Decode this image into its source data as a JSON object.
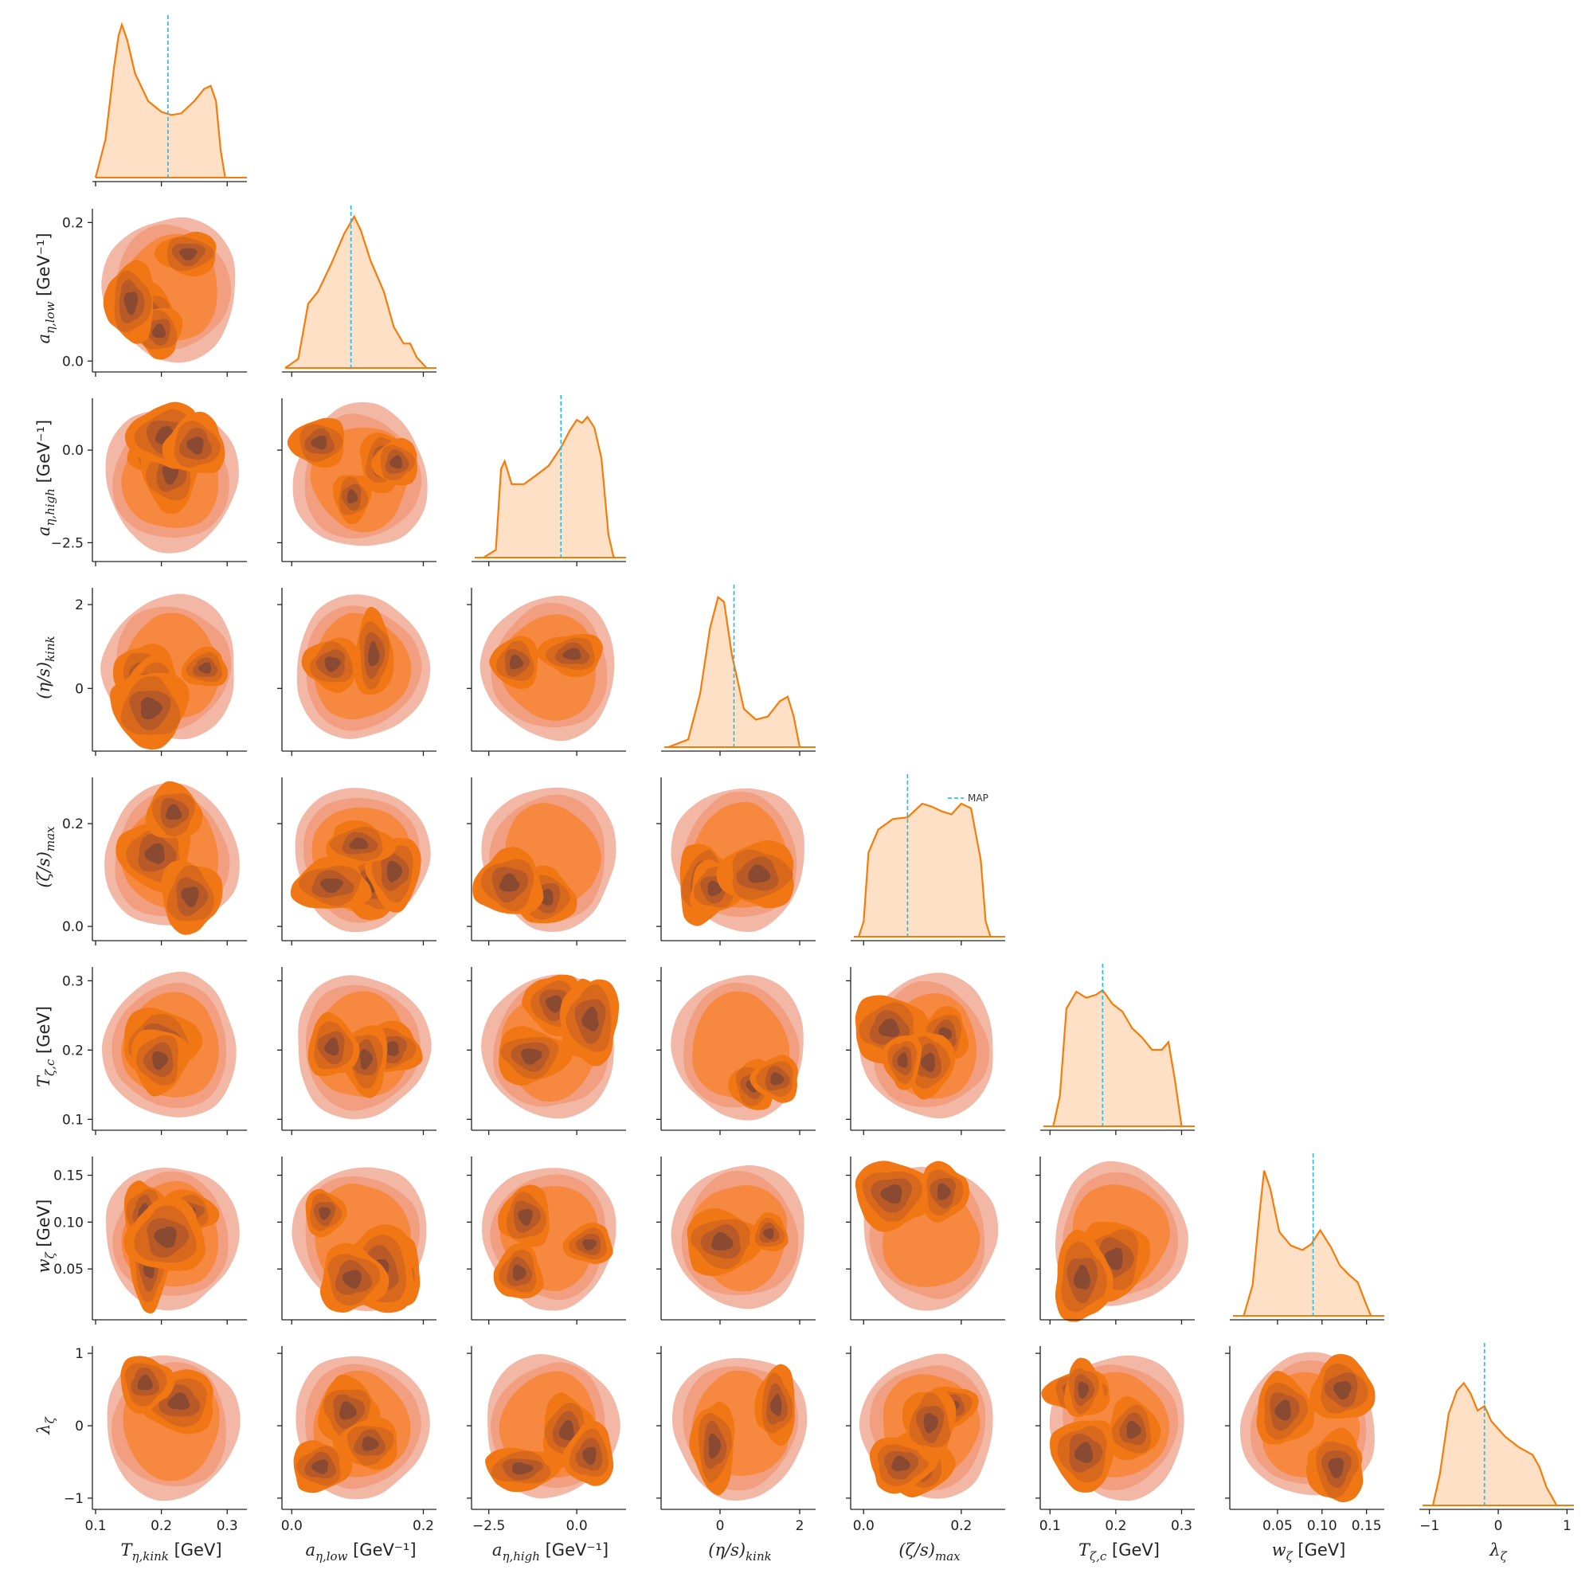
{
  "chart_data": {
    "type": "corner",
    "colors": {
      "kde_line": "#f57c0a",
      "kde_fill": "#fde0c5",
      "map_line": "#29b6e6",
      "contour_levels": [
        "#f2b8a5",
        "#f19f80",
        "#f6883f",
        "#f07713",
        "#d8691c",
        "#b85a28",
        "#8a4a32"
      ]
    },
    "legend": {
      "label": "MAP",
      "placement": "top-right of (ζ/s)max diagonal"
    },
    "parameters": [
      {
        "key": "Teta_kink",
        "label": "T_{η,kink} [GeV]",
        "range": [
          0.1,
          0.33
        ],
        "ticks": [
          "0.1",
          "0.2",
          "0.3"
        ],
        "tick_values": [
          0.1,
          0.2,
          0.3
        ],
        "map": 0.21,
        "kde": [
          [
            0.1,
            0.0
          ],
          [
            0.115,
            0.25
          ],
          [
            0.128,
            0.72
          ],
          [
            0.135,
            0.93
          ],
          [
            0.14,
            1.0
          ],
          [
            0.148,
            0.9
          ],
          [
            0.16,
            0.68
          ],
          [
            0.18,
            0.5
          ],
          [
            0.2,
            0.43
          ],
          [
            0.215,
            0.41
          ],
          [
            0.23,
            0.42
          ],
          [
            0.25,
            0.5
          ],
          [
            0.265,
            0.58
          ],
          [
            0.275,
            0.6
          ],
          [
            0.283,
            0.5
          ],
          [
            0.29,
            0.18
          ],
          [
            0.297,
            0.0
          ]
        ]
      },
      {
        "key": "aeta_low",
        "label": "a_{η,low} [GeV⁻¹]",
        "range": [
          -0.01,
          0.22
        ],
        "ticks": [
          "0.0",
          "0.2"
        ],
        "tick_values": [
          0.0,
          0.2
        ],
        "map": 0.09,
        "kde": [
          [
            -0.01,
            0.0
          ],
          [
            0.01,
            0.06
          ],
          [
            0.025,
            0.42
          ],
          [
            0.04,
            0.5
          ],
          [
            0.06,
            0.68
          ],
          [
            0.08,
            0.88
          ],
          [
            0.095,
            0.99
          ],
          [
            0.105,
            0.9
          ],
          [
            0.12,
            0.7
          ],
          [
            0.14,
            0.5
          ],
          [
            0.155,
            0.27
          ],
          [
            0.17,
            0.16
          ],
          [
            0.18,
            0.16
          ],
          [
            0.19,
            0.07
          ],
          [
            0.205,
            0.0
          ]
        ]
      },
      {
        "key": "aeta_high",
        "label": "a_{η,high} [GeV⁻¹]",
        "range": [
          -2.9,
          1.4
        ],
        "ticks": [
          "−2.5",
          "0.0"
        ],
        "tick_values": [
          -2.5,
          0.0
        ],
        "map": -0.45,
        "kde": [
          [
            -2.65,
            0.0
          ],
          [
            -2.3,
            0.05
          ],
          [
            -2.15,
            0.58
          ],
          [
            -2.05,
            0.63
          ],
          [
            -1.85,
            0.48
          ],
          [
            -1.5,
            0.48
          ],
          [
            -1.2,
            0.53
          ],
          [
            -0.8,
            0.6
          ],
          [
            -0.45,
            0.72
          ],
          [
            -0.2,
            0.83
          ],
          [
            0.0,
            0.9
          ],
          [
            0.15,
            0.88
          ],
          [
            0.3,
            0.92
          ],
          [
            0.5,
            0.85
          ],
          [
            0.7,
            0.65
          ],
          [
            0.9,
            0.15
          ],
          [
            1.05,
            0.0
          ]
        ]
      },
      {
        "key": "etas_kink",
        "label": "(η/s)_kink",
        "range": [
          -1.4,
          2.4
        ],
        "ticks": [
          "0",
          "2"
        ],
        "tick_values": [
          0,
          2
        ],
        "map": 0.35,
        "kde": [
          [
            -1.3,
            0.0
          ],
          [
            -0.8,
            0.05
          ],
          [
            -0.5,
            0.35
          ],
          [
            -0.25,
            0.78
          ],
          [
            -0.05,
            0.98
          ],
          [
            0.1,
            0.95
          ],
          [
            0.3,
            0.6
          ],
          [
            0.6,
            0.25
          ],
          [
            0.9,
            0.18
          ],
          [
            1.2,
            0.2
          ],
          [
            1.5,
            0.3
          ],
          [
            1.7,
            0.33
          ],
          [
            1.85,
            0.2
          ],
          [
            2.0,
            0.0
          ]
        ]
      },
      {
        "key": "zetas_max",
        "label": "(ζ/s)_max",
        "range": [
          -0.02,
          0.29
        ],
        "ticks": [
          "0.0",
          "0.2"
        ],
        "tick_values": [
          0.0,
          0.2
        ],
        "map": 0.09,
        "kde": [
          [
            -0.01,
            0.0
          ],
          [
            0.0,
            0.1
          ],
          [
            0.01,
            0.55
          ],
          [
            0.03,
            0.7
          ],
          [
            0.06,
            0.77
          ],
          [
            0.09,
            0.78
          ],
          [
            0.12,
            0.87
          ],
          [
            0.14,
            0.85
          ],
          [
            0.16,
            0.82
          ],
          [
            0.18,
            0.8
          ],
          [
            0.2,
            0.87
          ],
          [
            0.22,
            0.84
          ],
          [
            0.24,
            0.5
          ],
          [
            0.25,
            0.1
          ],
          [
            0.26,
            0.0
          ]
        ]
      },
      {
        "key": "Tzeta_c",
        "label": "T_{ζ,c} [GeV]",
        "range": [
          0.09,
          0.32
        ],
        "ticks": [
          "0.1",
          "0.2",
          "0.3"
        ],
        "tick_values": [
          0.1,
          0.2,
          0.3
        ],
        "map": 0.18,
        "kde": [
          [
            0.105,
            0.0
          ],
          [
            0.115,
            0.2
          ],
          [
            0.125,
            0.77
          ],
          [
            0.14,
            0.88
          ],
          [
            0.155,
            0.84
          ],
          [
            0.17,
            0.86
          ],
          [
            0.18,
            0.89
          ],
          [
            0.195,
            0.8
          ],
          [
            0.21,
            0.75
          ],
          [
            0.225,
            0.64
          ],
          [
            0.24,
            0.58
          ],
          [
            0.255,
            0.5
          ],
          [
            0.27,
            0.5
          ],
          [
            0.28,
            0.55
          ],
          [
            0.29,
            0.3
          ],
          [
            0.3,
            0.0
          ]
        ]
      },
      {
        "key": "w_zeta",
        "label": "w_ζ [GeV]",
        "range": [
          0.0,
          0.17
        ],
        "ticks": [
          "0.05",
          "0.10",
          "0.15"
        ],
        "tick_values": [
          0.05,
          0.1,
          0.15
        ],
        "map": 0.09,
        "kde": [
          [
            0.012,
            0.0
          ],
          [
            0.022,
            0.2
          ],
          [
            0.03,
            0.68
          ],
          [
            0.035,
            0.95
          ],
          [
            0.042,
            0.83
          ],
          [
            0.052,
            0.55
          ],
          [
            0.065,
            0.46
          ],
          [
            0.078,
            0.43
          ],
          [
            0.088,
            0.47
          ],
          [
            0.098,
            0.56
          ],
          [
            0.11,
            0.45
          ],
          [
            0.12,
            0.33
          ],
          [
            0.13,
            0.27
          ],
          [
            0.14,
            0.22
          ],
          [
            0.148,
            0.1
          ],
          [
            0.155,
            0.0
          ]
        ]
      },
      {
        "key": "lambda_zeta",
        "label": "λ_ζ",
        "range": [
          -1.1,
          1.1
        ],
        "ticks": [
          "−1",
          "0",
          "1"
        ],
        "tick_values": [
          -1,
          0,
          1
        ],
        "map": -0.2,
        "kde": [
          [
            -0.95,
            0.0
          ],
          [
            -0.85,
            0.2
          ],
          [
            -0.72,
            0.6
          ],
          [
            -0.6,
            0.75
          ],
          [
            -0.5,
            0.8
          ],
          [
            -0.4,
            0.73
          ],
          [
            -0.3,
            0.62
          ],
          [
            -0.2,
            0.65
          ],
          [
            -0.1,
            0.55
          ],
          [
            0.1,
            0.45
          ],
          [
            0.3,
            0.38
          ],
          [
            0.5,
            0.33
          ],
          [
            0.6,
            0.25
          ],
          [
            0.7,
            0.12
          ],
          [
            0.85,
            0.0
          ]
        ]
      }
    ]
  }
}
